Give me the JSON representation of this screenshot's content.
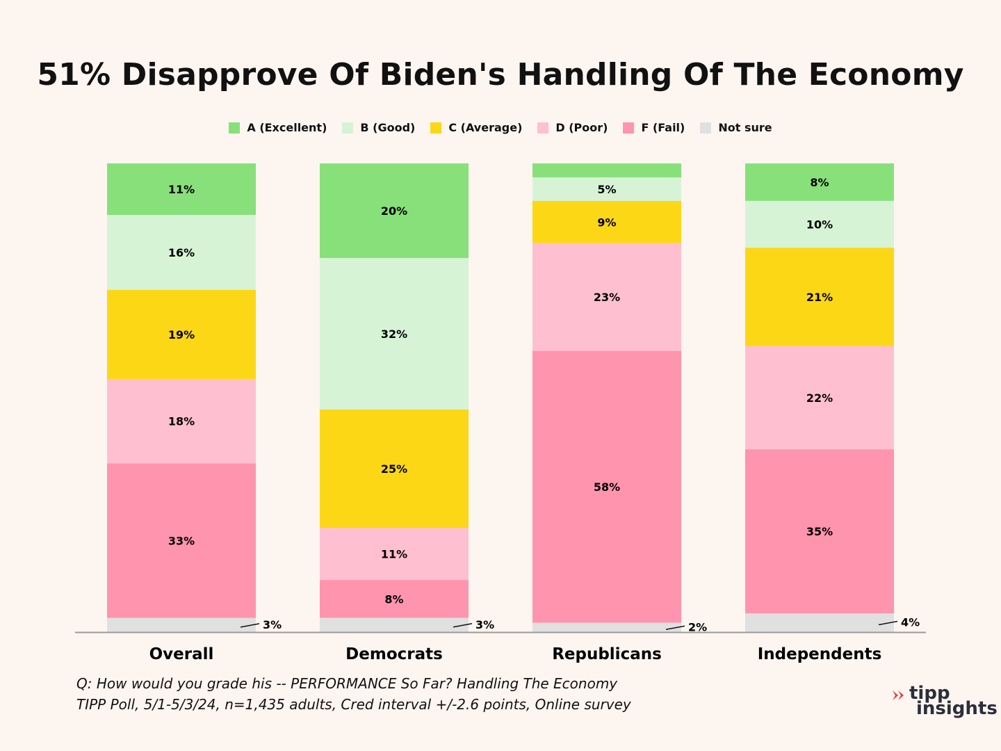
{
  "chart_data": {
    "type": "bar",
    "stacked": true,
    "title": "51% Disapprove Of Biden's Handling Of The Economy",
    "categories": [
      "Overall",
      "Democrats",
      "Republicans",
      "Independents"
    ],
    "series": [
      {
        "name": "A (Excellent)",
        "color": "#88e07a",
        "values": [
          11,
          20,
          3,
          8
        ]
      },
      {
        "name": "B (Good)",
        "color": "#d6f3d6",
        "values": [
          16,
          32,
          5,
          10
        ]
      },
      {
        "name": "C (Average)",
        "color": "#fcd716",
        "values": [
          19,
          25,
          9,
          21
        ]
      },
      {
        "name": "D (Poor)",
        "color": "#fec0d0",
        "values": [
          18,
          11,
          23,
          22
        ]
      },
      {
        "name": "F (Fail)",
        "color": "#ff94ae",
        "values": [
          33,
          8,
          58,
          35
        ]
      },
      {
        "name": "Not sure",
        "color": "#e0e0e0",
        "values": [
          3,
          3,
          2,
          4
        ]
      }
    ],
    "labels": [
      [
        "11%",
        "16%",
        "19%",
        "18%",
        "33%",
        "3%"
      ],
      [
        "20%",
        "32%",
        "25%",
        "11%",
        "8%",
        "3%"
      ],
      [
        "",
        "5%",
        "9%",
        "23%",
        "58%",
        "2%"
      ],
      [
        "8%",
        "10%",
        "21%",
        "22%",
        "35%",
        "4%"
      ]
    ],
    "legend_position": "top-center",
    "grid": false
  },
  "footnote": {
    "line1": "Q:  How would you grade his -- PERFORMANCE So Far? Handling The Economy",
    "line2": "TIPP Poll, 5/1-5/3/24, n=1,435 adults, Cred interval +/-2.6 points, Online survey"
  },
  "logo": {
    "top": "tipp",
    "bottom": "insights"
  },
  "colors": {
    "background": "#fdf5f0",
    "axis": "#9a9a9a",
    "logo_accent": "#e8393a"
  }
}
